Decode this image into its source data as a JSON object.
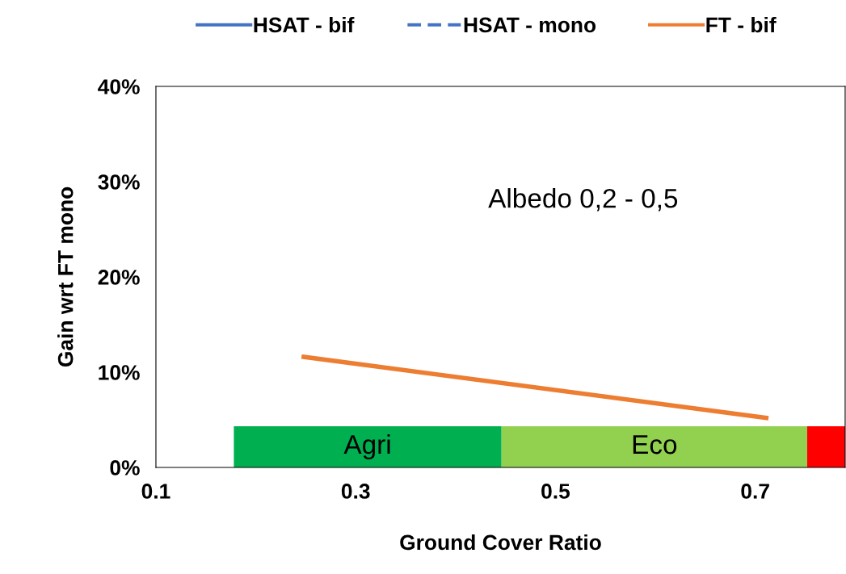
{
  "chart_data": {
    "type": "line",
    "xlabel": "Ground Cover Ratio",
    "ylabel": "Gain wrt FT mono",
    "x": [
      0.248,
      0.711
    ],
    "series": [
      {
        "name": "HSAT - bif",
        "color": "#4472c4",
        "values": [
          null,
          null
        ],
        "line_style": "solid"
      },
      {
        "name": "HSAT - mono",
        "color": "#4472c4",
        "values": [
          null,
          null
        ],
        "line_style": "dashed"
      },
      {
        "name": "FT - bif",
        "color": "#ed7d31",
        "values": [
          0.116,
          0.052
        ],
        "line_style": "solid"
      }
    ],
    "xlim": [
      0.1,
      0.79
    ],
    "xticks": [
      0.1,
      0.3,
      0.5,
      0.7
    ],
    "ylim": [
      0,
      0.4
    ],
    "yticks": [
      {
        "value": 0,
        "label": "0%"
      },
      {
        "value": 0.1,
        "label": "10%"
      },
      {
        "value": 0.2,
        "label": "20%"
      },
      {
        "value": 0.3,
        "label": "30%"
      },
      {
        "value": 0.4,
        "label": "40%"
      }
    ],
    "bands": [
      {
        "axis": "x",
        "from": 0.178,
        "to": 0.446,
        "label": "Agri",
        "color": "#00b050"
      },
      {
        "axis": "x",
        "from": 0.446,
        "to": 0.752,
        "label": "Eco",
        "color": "#92d050"
      },
      {
        "axis": "x",
        "from": 0.752,
        "to": 0.79,
        "label": null,
        "color": "#ff0000"
      }
    ],
    "annotations": [
      "Albedo 0,2 - 0,5"
    ],
    "grid": false,
    "legend": "top"
  }
}
